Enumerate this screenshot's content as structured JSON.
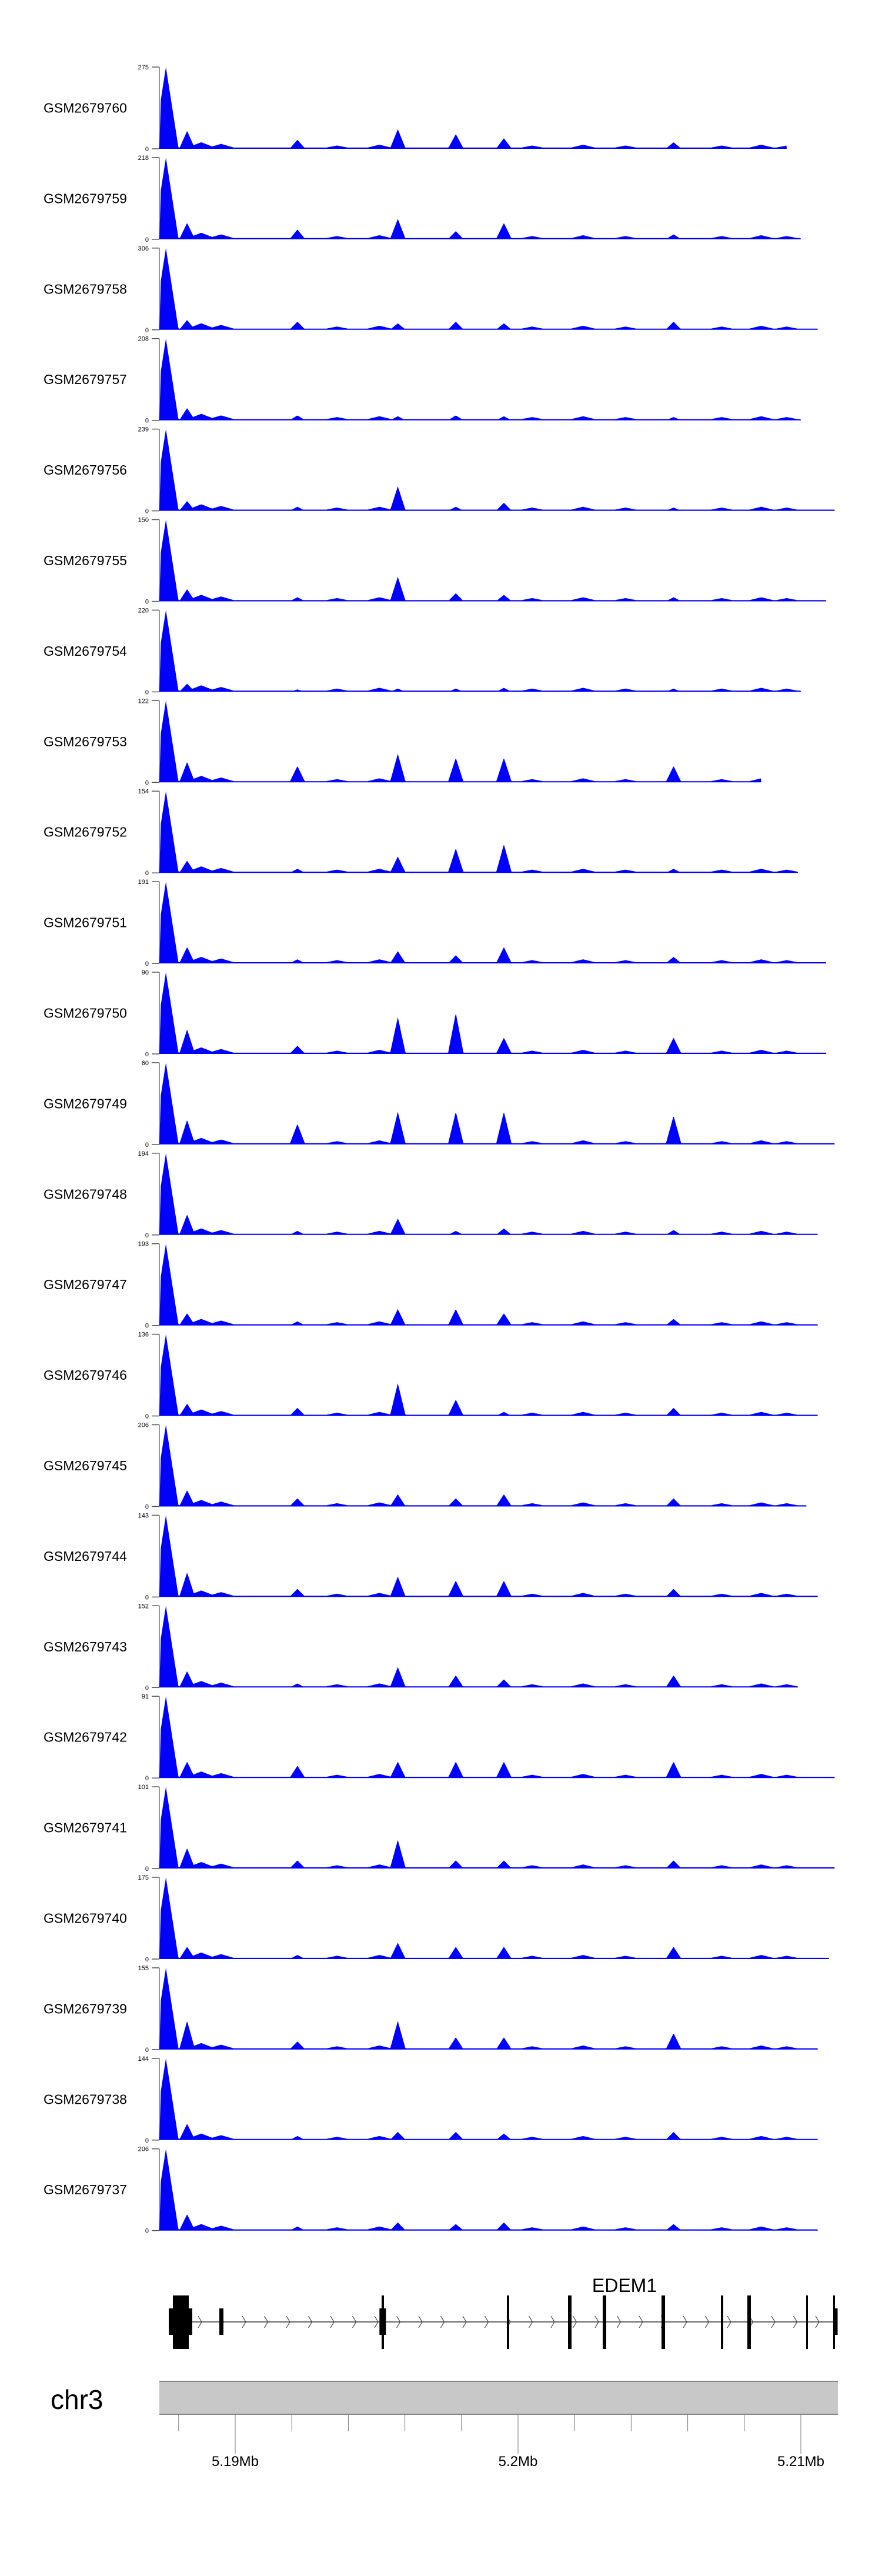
{
  "chart_data": {
    "type": "area",
    "title": "",
    "fill_color": "#0000ff",
    "chromosome": "chr3",
    "xlim_bp": [
      5187320,
      5211320
    ],
    "tracks": [
      {
        "name": "GSM2679760",
        "ymax": 275,
        "end_kb": 5209.5,
        "p": [
          0.22,
          0.11,
          0.24,
          0.18,
          0.13,
          0.08
        ]
      },
      {
        "name": "GSM2679759",
        "ymax": 218,
        "end_kb": 5210.0,
        "p": [
          0.2,
          0.12,
          0.25,
          0.1,
          0.2,
          0.06
        ]
      },
      {
        "name": "GSM2679758",
        "ymax": 306,
        "end_kb": 5210.6,
        "p": [
          0.12,
          0.1,
          0.08,
          0.1,
          0.08,
          0.1
        ]
      },
      {
        "name": "GSM2679757",
        "ymax": 208,
        "end_kb": 5210.0,
        "p": [
          0.15,
          0.06,
          0.05,
          0.06,
          0.05,
          0.04
        ]
      },
      {
        "name": "GSM2679756",
        "ymax": 239,
        "end_kb": 5211.2,
        "p": [
          0.12,
          0.05,
          0.3,
          0.05,
          0.1,
          0.04
        ]
      },
      {
        "name": "GSM2679755",
        "ymax": 150,
        "end_kb": 5210.9,
        "p": [
          0.15,
          0.05,
          0.3,
          0.1,
          0.08,
          0.05
        ]
      },
      {
        "name": "GSM2679754",
        "ymax": 220,
        "end_kb": 5210.0,
        "p": [
          0.1,
          0.03,
          0.04,
          0.04,
          0.05,
          0.04
        ]
      },
      {
        "name": "GSM2679753",
        "ymax": 122,
        "end_kb": 5208.6,
        "p": [
          0.25,
          0.2,
          0.35,
          0.3,
          0.3,
          0.2
        ]
      },
      {
        "name": "GSM2679752",
        "ymax": 154,
        "end_kb": 5209.9,
        "p": [
          0.15,
          0.05,
          0.2,
          0.3,
          0.35,
          0.05
        ]
      },
      {
        "name": "GSM2679751",
        "ymax": 191,
        "end_kb": 5210.9,
        "p": [
          0.2,
          0.05,
          0.15,
          0.1,
          0.2,
          0.08
        ]
      },
      {
        "name": "GSM2679750",
        "ymax": 90,
        "end_kb": 5210.9,
        "p": [
          0.3,
          0.1,
          0.45,
          0.5,
          0.2,
          0.2
        ]
      },
      {
        "name": "GSM2679749",
        "ymax": 60,
        "end_kb": 5211.2,
        "p": [
          0.3,
          0.25,
          0.4,
          0.4,
          0.4,
          0.35
        ]
      },
      {
        "name": "GSM2679748",
        "ymax": 194,
        "end_kb": 5210.6,
        "p": [
          0.25,
          0.05,
          0.2,
          0.05,
          0.08,
          0.06
        ]
      },
      {
        "name": "GSM2679747",
        "ymax": 193,
        "end_kb": 5210.6,
        "p": [
          0.15,
          0.05,
          0.2,
          0.2,
          0.15,
          0.08
        ]
      },
      {
        "name": "GSM2679746",
        "ymax": 136,
        "end_kb": 5210.6,
        "p": [
          0.15,
          0.1,
          0.4,
          0.2,
          0.05,
          0.1
        ]
      },
      {
        "name": "GSM2679745",
        "ymax": 206,
        "end_kb": 5210.2,
        "p": [
          0.2,
          0.1,
          0.15,
          0.1,
          0.15,
          0.1
        ]
      },
      {
        "name": "GSM2679744",
        "ymax": 143,
        "end_kb": 5210.6,
        "p": [
          0.3,
          0.1,
          0.25,
          0.2,
          0.2,
          0.1
        ]
      },
      {
        "name": "GSM2679743",
        "ymax": 152,
        "end_kb": 5209.9,
        "p": [
          0.2,
          0.05,
          0.25,
          0.15,
          0.1,
          0.15
        ]
      },
      {
        "name": "GSM2679742",
        "ymax": 91,
        "end_kb": 5211.2,
        "p": [
          0.2,
          0.15,
          0.2,
          0.2,
          0.2,
          0.2
        ]
      },
      {
        "name": "GSM2679741",
        "ymax": 101,
        "end_kb": 5211.2,
        "p": [
          0.25,
          0.1,
          0.35,
          0.1,
          0.1,
          0.1
        ]
      },
      {
        "name": "GSM2679740",
        "ymax": 175,
        "end_kb": 5211.0,
        "p": [
          0.15,
          0.05,
          0.2,
          0.15,
          0.15,
          0.15
        ]
      },
      {
        "name": "GSM2679739",
        "ymax": 155,
        "end_kb": 5210.6,
        "p": [
          0.35,
          0.1,
          0.35,
          0.15,
          0.15,
          0.2
        ]
      },
      {
        "name": "GSM2679738",
        "ymax": 144,
        "end_kb": 5210.6,
        "p": [
          0.2,
          0.05,
          0.1,
          0.1,
          0.08,
          0.1
        ]
      },
      {
        "name": "GSM2679737",
        "ymax": 206,
        "end_kb": 5210.6,
        "p": [
          0.2,
          0.05,
          0.1,
          0.08,
          0.1,
          0.08
        ]
      }
    ],
    "peak_positions_kb": [
      5188.3,
      5192.2,
      5195.75,
      5197.8,
      5199.5,
      5205.5
    ],
    "background_peaks": [
      [
        5187.3,
        0.5
      ],
      [
        5188.8,
        0.08
      ],
      [
        5189.5,
        0.06
      ],
      [
        5193.6,
        0.04
      ],
      [
        5195.1,
        0.05
      ],
      [
        5200.5,
        0.04
      ],
      [
        5202.3,
        0.05
      ],
      [
        5203.8,
        0.04
      ],
      [
        5207.2,
        0.04
      ],
      [
        5208.6,
        0.05
      ],
      [
        5209.5,
        0.04
      ]
    ],
    "ymin_label": "0",
    "gene": {
      "name": "EDEM1",
      "strand": "+",
      "exons": [
        {
          "start": 5187651,
          "end": 5188482,
          "type": "utr"
        },
        {
          "start": 5187796,
          "end": 5188358,
          "type": "cds"
        },
        {
          "start": 5189439,
          "end": 5189584,
          "type": "utr"
        },
        {
          "start": 5195100,
          "end": 5195330,
          "type": "utr"
        },
        {
          "start": 5195177,
          "end": 5195260,
          "type": "cds"
        },
        {
          "start": 5199605,
          "end": 5199688,
          "type": "cds"
        },
        {
          "start": 5201767,
          "end": 5201892,
          "type": "cds"
        },
        {
          "start": 5202994,
          "end": 5203119,
          "type": "cds"
        },
        {
          "start": 5205073,
          "end": 5205198,
          "type": "cds"
        },
        {
          "start": 5207173,
          "end": 5207256,
          "type": "cds"
        },
        {
          "start": 5208108,
          "end": 5208233,
          "type": "cds"
        },
        {
          "start": 5210187,
          "end": 5210229,
          "type": "cds"
        },
        {
          "start": 5211143,
          "end": 5211206,
          "type": "cds"
        },
        {
          "start": 5211143,
          "end": 5211300,
          "type": "utr"
        }
      ]
    },
    "axis": {
      "minor_ticks_bp": [
        5188000,
        5190000,
        5192000,
        5194000,
        5196000,
        5198000,
        5200000,
        5202000,
        5204000,
        5206000,
        5208000,
        5210000
      ],
      "labels": [
        {
          "bp": 5190000,
          "text": "5.19Mb"
        },
        {
          "bp": 5200000,
          "text": "5.2Mb"
        },
        {
          "bp": 5210000,
          "text": "5.21Mb"
        }
      ]
    }
  }
}
